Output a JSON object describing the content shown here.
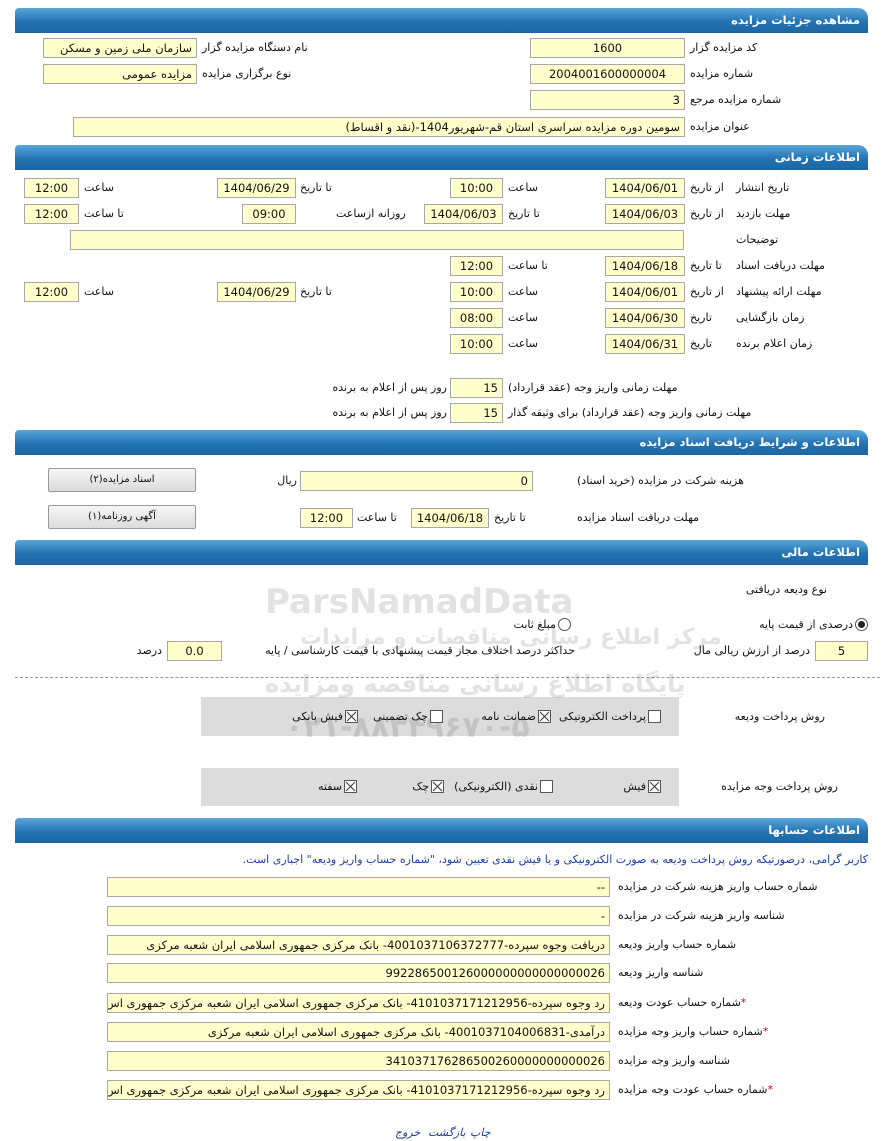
{
  "header": {
    "title": "مشاهده جزئیات مزایده"
  },
  "details": {
    "code": {
      "label": "کد مزایده گزار",
      "value": "1600"
    },
    "organizer": {
      "label": "نام دستگاه مزایده گزار",
      "value": "سازمان ملی زمین و مسکن"
    },
    "number": {
      "label": "شماره مزایده",
      "value": "2004001600000004"
    },
    "kind": {
      "label": "نوع برگزاری مزایده",
      "value": "مزایده عمومی"
    },
    "reference": {
      "label": "شماره مزایده مرجع",
      "value": "3"
    },
    "subject": {
      "label": "عنوان مزایده",
      "value": "سومین دوره مزایده سراسری استان قم-شهریور1404-(نقد و اقساط)"
    }
  },
  "timing": {
    "title": "اطلاعات زمانی",
    "publish": {
      "label": "تاریخ انتشار",
      "from_label": "از تاریخ",
      "from": "1404/06/01",
      "from_time_label": "ساعت",
      "from_time": "10:00",
      "to_label": "تا تاریخ",
      "to": "1404/06/29",
      "to_time_label": "ساعت",
      "to_time": "12:00"
    },
    "visit": {
      "label": "مهلت بازدید",
      "from_label": "از تاریخ",
      "from": "1404/06/03",
      "to_label": "تا تاریخ",
      "to": "1404/06/03",
      "daily_label": "روزانه ازساعت",
      "daily_from": "09:00",
      "daily_to_label": "تا ساعت",
      "daily_to": "12:00"
    },
    "notes": {
      "label": "توضیحات"
    },
    "documents": {
      "label": "مهلت دریافت اسناد",
      "to_label": "تا تاریخ",
      "to": "1404/06/18",
      "time_label": "تا ساعت",
      "time": "12:00"
    },
    "offers": {
      "label": "مهلت ارائه پیشنهاد",
      "from_label": "از تاریخ",
      "from": "1404/06/01",
      "from_time_label": "ساعت",
      "from_time": "10:00",
      "to_label": "تا تاریخ",
      "to": "1404/06/29",
      "to_time_label": "ساعت",
      "to_time": "12:00"
    },
    "opening": {
      "label": "زمان بازگشایی",
      "date_label": "تاریخ",
      "date": "1404/06/30",
      "time_label": "ساعت",
      "time": "08:00"
    },
    "winner": {
      "label": "زمان اعلام برنده",
      "date_label": "تاریخ",
      "date": "1404/06/31",
      "time_label": "ساعت",
      "time": "10:00"
    },
    "payment": {
      "label": "مهلت زمانی واریز وجه (عقد قرارداد)",
      "days": "15",
      "unit": "روز پس از اعلام به برنده"
    },
    "guarantor_payment": {
      "label": "مهلت زمانی واریز وجه (عقد قرارداد) برای وثیقه گذار",
      "days": "15",
      "unit": "روز پس از اعلام به برنده"
    }
  },
  "documents": {
    "title": "اطلاعات و شرایط دریافت اسناد مزایده",
    "fee": {
      "label": "هزینه شرکت در مزایده (خرید اسناد)",
      "value": "0",
      "unit": "ریال"
    },
    "deadline": {
      "label": "مهلت دریافت اسناد مزایده",
      "to_label": "تا تاریخ",
      "to": "1404/06/18",
      "time_label": "تا ساعت",
      "time": "12:00"
    },
    "buttons": [
      "اسناد مزایده(۲)",
      "آگهی روزنامه(۱)"
    ]
  },
  "finance": {
    "title": "اطلاعات مالی",
    "deposit_type_label": "نوع ودیعه دریافتی",
    "deposit_types": [
      {
        "label": "درصدی از قیمت پایه",
        "checked": true
      },
      {
        "label": "مبلغ ثابت",
        "checked": false
      }
    ],
    "percent": "5",
    "percent_label": "درصد از ارزش ریالی مال",
    "max_diff_label": "حداکثر درصد اختلاف مجاز قیمت پیشنهادی با قیمت کارشناسی / پایه",
    "max_diff": "0.0",
    "max_diff_unit": "درصد",
    "deposit_method_label": "روش پرداخت ودیعه",
    "deposit_methods": [
      {
        "label": "پرداخت الکترونیکی",
        "checked": false
      },
      {
        "label": "ضمانت نامه",
        "checked": true
      },
      {
        "label": "چک تضمینی",
        "checked": false
      },
      {
        "label": "فیش بانکی",
        "checked": true
      }
    ],
    "payment_method_label": "روش پرداخت وجه مزایده",
    "payment_methods": [
      {
        "label": "فیش",
        "checked": true
      },
      {
        "label": "نقدی (الکترونیکی)",
        "checked": false
      },
      {
        "label": "چک",
        "checked": true
      },
      {
        "label": "سفته",
        "checked": true
      }
    ]
  },
  "accounts": {
    "title": "اطلاعات حسابها",
    "note": "کاربر گرامی، درصورتیکه روش پرداخت ودیعه به صورت الکترونیکی و یا فیش نقدی تعیین شود، \"شماره حساب واریز ودیعه\" اجباری است.",
    "rows": [
      {
        "label": "شماره حساب واریز هزینه شرکت در مزایده",
        "value": "--"
      },
      {
        "label": "شناسه واریز هزینه شرکت در مزایده",
        "value": "-"
      },
      {
        "label": "شماره حساب واریز ودیعه",
        "value": "دریافت وجوه سپرده-4001037106372777- بانک مرکزی جمهوری اسلامی ایران شعبه مرکزی"
      },
      {
        "label": "شناسه واریز ودیعه",
        "value": "992286500126000000000000000026"
      },
      {
        "label": "شماره حساب عودت ودیعه",
        "required": "*",
        "value": "رد وجوه سپرده-4101037171212956- بانک مرکزی جمهوری اسلامی ایران شعبه مرکزی جمهوری اس"
      },
      {
        "label": "شماره حساب واریز وجه مزایده",
        "required": "*",
        "value": "درآمدی-4001037104006831- بانک مرکزی جمهوری اسلامی ایران شعبه مرکزی"
      },
      {
        "label": "شناسه واریز وجه مزایده",
        "value": "341037176286500260000000000026"
      },
      {
        "label": "شماره حساب عودت وجه مزایده",
        "required": "*",
        "value": "رد وجوه سپرده-4101037171212956- بانک مرکزی جمهوری اسلامی ایران شعبه مرکزی جمهوری اس"
      }
    ]
  },
  "footer": {
    "links": [
      "چاپ",
      "بازگشت",
      "خروج"
    ]
  },
  "watermark": {
    "brand": "ParsNamadData",
    "line1": "مرکز اطلاع رسانی مناقصات و مزایدات",
    "line2": "پایگاه اطلاع رسانی مناقصه ومزایده",
    "phone": "۰۲۱-۸۸۳۴۹۶۷۰-۵"
  }
}
